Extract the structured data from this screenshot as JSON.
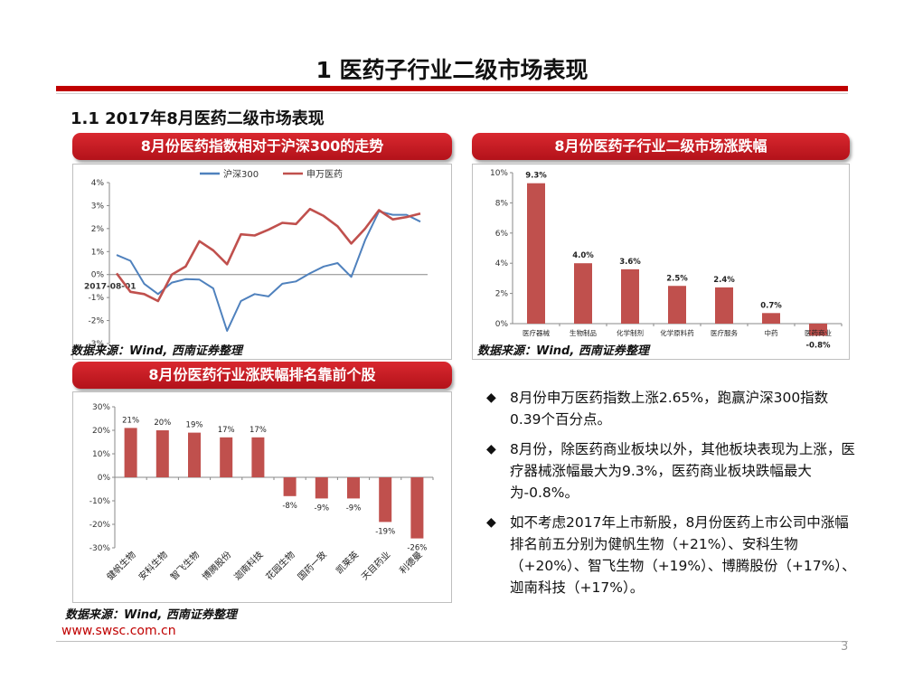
{
  "title": "1 医药子行业二级市场表现",
  "subtitle": "1.1 2017年8月医药二级市场表现",
  "panels": {
    "line_title": "8月份医药指数相对于沪深300的走势",
    "sector_title": "8月份医药子行业二级市场涨跌幅",
    "stocks_title": "8月份医药行业涨跌幅排名靠前个股"
  },
  "source_text": "数据来源：Wind, 西南证券整理",
  "bullets": [
    "8月份申万医药指数上涨2.65%，跑赢沪深300指数0.39个百分点。",
    "8月份，除医药商业板块以外，其他板块表现为上涨，医疗器械涨幅最大为9.3%，医药商业板块跌幅最大为-0.8%。",
    "如不考虑2017年上市新股，8月份医药上市公司中涨幅排名前五分别为健帆生物（+21%）、安科生物（+20%）、智飞生物（+19%）、博腾股份（+17%）、迦南科技（+17%）。"
  ],
  "footer": {
    "url": "www.swsc.com.cn",
    "page": "3"
  },
  "colors": {
    "red": "#c0504d",
    "blue": "#4f81bd",
    "accent": "#c00000"
  },
  "chart_data": [
    {
      "id": "line",
      "type": "line",
      "title": "8月份医药指数相对于沪深300的走势",
      "x_label_start": "2017-08-01",
      "ylim": [
        -3,
        4
      ],
      "yticks": [
        "4%",
        "3%",
        "2%",
        "1%",
        "0%",
        "-1%",
        "-2%",
        "-3%"
      ],
      "series": [
        {
          "name": "沪深300",
          "color": "#4f81bd",
          "values": [
            0.85,
            0.6,
            -0.4,
            -0.85,
            -0.35,
            -0.2,
            -0.22,
            -0.6,
            -2.45,
            -1.15,
            -0.85,
            -0.95,
            -0.4,
            -0.3,
            0.05,
            0.35,
            0.5,
            -0.1,
            1.5,
            2.75,
            2.6,
            2.6,
            2.3
          ]
        },
        {
          "name": "申万医药",
          "color": "#c0504d",
          "values": [
            0.05,
            -0.75,
            -0.85,
            -1.15,
            0.0,
            0.35,
            1.45,
            1.05,
            0.45,
            1.75,
            1.7,
            1.95,
            2.25,
            2.2,
            2.85,
            2.55,
            2.1,
            1.35,
            2.0,
            2.8,
            2.4,
            2.5,
            2.65
          ]
        }
      ]
    },
    {
      "id": "sector",
      "type": "bar",
      "title": "8月份医药子行业二级市场涨跌幅",
      "categories": [
        "医疗器械",
        "生物制品",
        "化学制剂",
        "化学原料药",
        "医疗服务",
        "中药",
        "医药商业"
      ],
      "values": [
        9.3,
        4.0,
        3.6,
        2.5,
        2.4,
        0.7,
        -0.8
      ],
      "labels": [
        "9.3%",
        "4.0%",
        "3.6%",
        "2.5%",
        "2.4%",
        "0.7%",
        "-0.8%"
      ],
      "ylim": [
        0,
        10
      ],
      "yticks": [
        "10%",
        "8%",
        "6%",
        "4%",
        "2%",
        "0%"
      ]
    },
    {
      "id": "stocks",
      "type": "bar",
      "title": "8月份医药行业涨跌幅排名靠前个股",
      "categories": [
        "健帆生物",
        "安科生物",
        "智飞生物",
        "博腾股份",
        "迦南科技",
        "花园生物",
        "国药一致",
        "凯莱英",
        "天目药业",
        "利德曼"
      ],
      "values": [
        21,
        20,
        19,
        17,
        17,
        -8,
        -9,
        -9,
        -19,
        -26
      ],
      "labels": [
        "21%",
        "20%",
        "19%",
        "17%",
        "17%",
        "-8%",
        "-9%",
        "-9%",
        "-19%",
        "-26%"
      ],
      "ylim": [
        -30,
        30
      ],
      "yticks": [
        "30%",
        "20%",
        "10%",
        "0%",
        "-10%",
        "-20%",
        "-30%"
      ]
    }
  ]
}
